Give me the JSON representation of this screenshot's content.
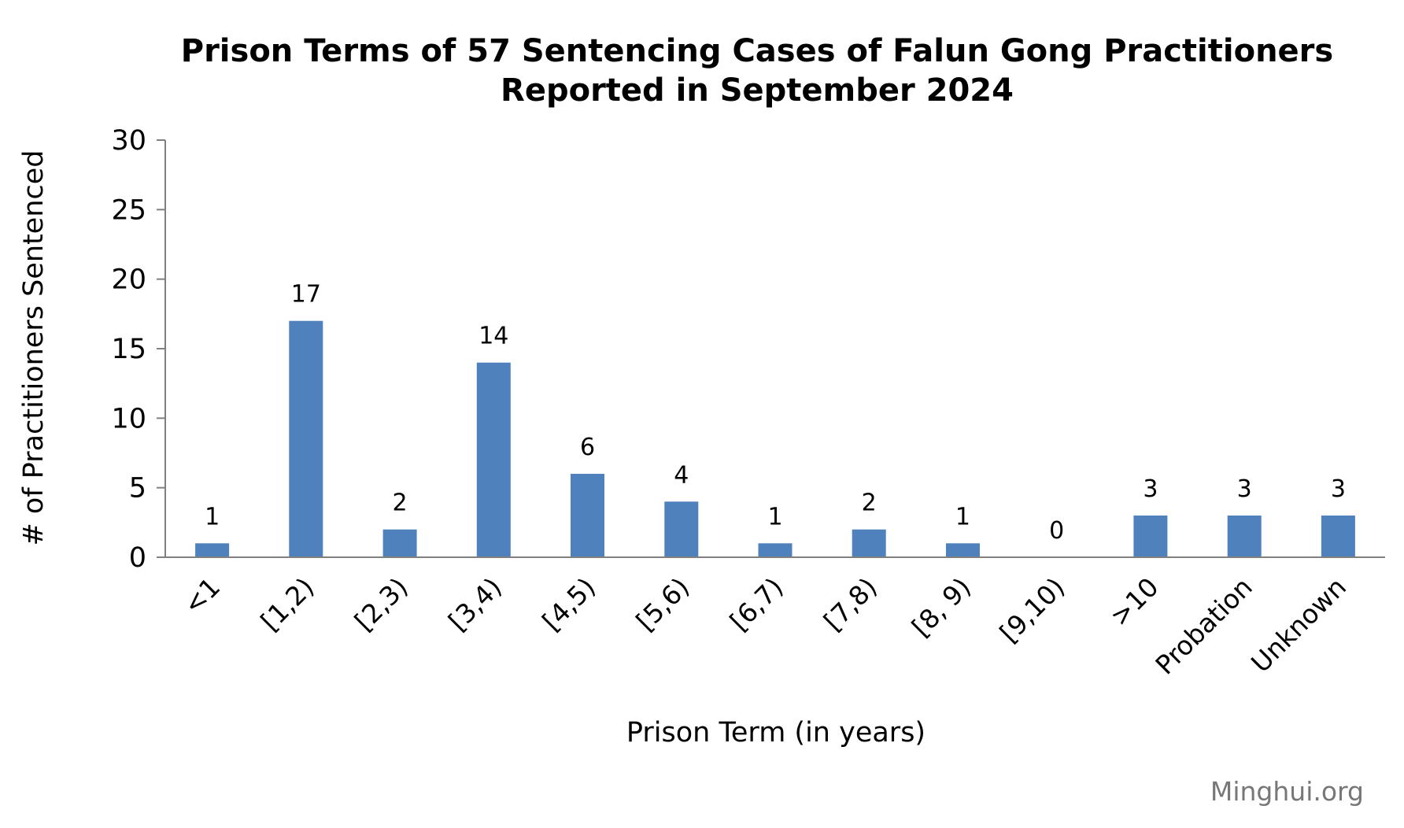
{
  "chart_data": {
    "type": "bar",
    "title": "Prison Terms of 57 Sentencing Cases of Falun Gong Practitioners Reported in September 2024",
    "title_lines": [
      "Prison Terms of 57 Sentencing Cases of Falun Gong Practitioners",
      "Reported in September 2024"
    ],
    "xlabel": "Prison Term (in years)",
    "ylabel": "# of Practitioners Sentenced",
    "categories": [
      "<1",
      "[1,2)",
      "[2,3)",
      "[3,4)",
      "[4,5)",
      "[5,6)",
      "[6,7)",
      "[7,8)",
      "[8, 9)",
      "[9,10)",
      ">10",
      "Probation",
      "Unknown"
    ],
    "values": [
      1,
      17,
      2,
      14,
      6,
      4,
      1,
      2,
      1,
      0,
      3,
      3,
      3
    ],
    "ylim": [
      0,
      30
    ],
    "yticks": [
      0,
      5,
      10,
      15,
      20,
      25,
      30
    ],
    "data_labels": true,
    "grid": false,
    "legend": "none",
    "bar_color": "#4F81BD"
  },
  "watermark": "Minghui.org"
}
